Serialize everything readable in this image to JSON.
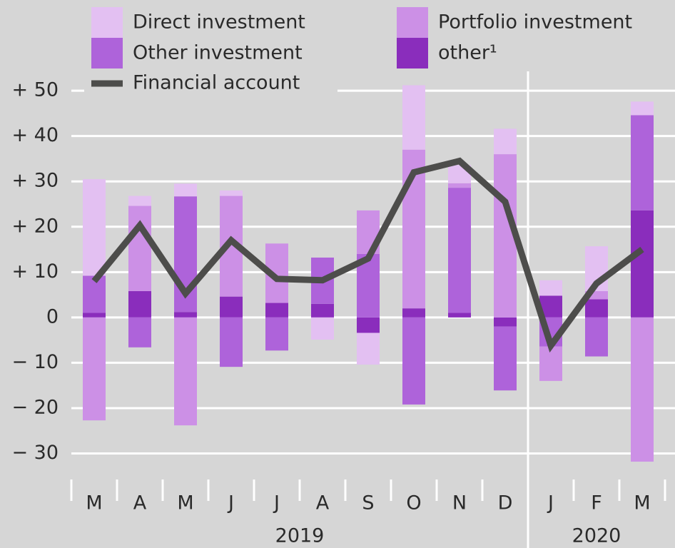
{
  "chart_data": {
    "type": "bar",
    "stacked": true,
    "groups": [
      {
        "label": "2019",
        "categories": [
          "M",
          "A",
          "M",
          "J",
          "J",
          "A",
          "S",
          "O",
          "N",
          "D"
        ]
      },
      {
        "label": "2020",
        "categories": [
          "J",
          "F",
          "M"
        ]
      }
    ],
    "series": [
      {
        "name": "Direct investment",
        "color": "#e3c0f2",
        "values": [
          21.3,
          2.2,
          2.8,
          1.2,
          0,
          -4.9,
          -7,
          14.2,
          4,
          5.6,
          3.4,
          9.9,
          3
        ]
      },
      {
        "name": "Portfolio investment",
        "color": "#cc90e6",
        "values": [
          -22.7,
          18.8,
          -23.8,
          22.2,
          13.1,
          0,
          9.6,
          35,
          1,
          36,
          -7.6,
          1.8,
          -31.8
        ]
      },
      {
        "name": "Other investment",
        "color": "#ae63da",
        "values": [
          8.2,
          -6.6,
          25.5,
          -10.9,
          -7.3,
          10.2,
          14,
          -19.2,
          27.6,
          -14.1,
          -6.4,
          -8.6,
          21
        ]
      },
      {
        "name": "other¹",
        "color": "#8a2dbc",
        "values": [
          1,
          5.8,
          1.2,
          4.6,
          3.2,
          3,
          -3.4,
          2,
          1,
          -2,
          4.8,
          4,
          23.6
        ]
      },
      {
        "name": "Financial account",
        "type": "line",
        "color": "#4d4d4b",
        "values": [
          8,
          20.3,
          5.3,
          17,
          8.5,
          8.2,
          13,
          32,
          34.5,
          25.5,
          -6.2,
          7.5,
          15
        ]
      }
    ],
    "ylim": [
      -33,
      70
    ],
    "yticks": [
      {
        "value": -30,
        "label": "− 30"
      },
      {
        "value": -20,
        "label": "− 20"
      },
      {
        "value": -10,
        "label": "− 10"
      },
      0,
      {
        "value": 10,
        "label": "+ 10"
      },
      {
        "value": 20,
        "label": "+ 20"
      },
      {
        "value": 30,
        "label": "+ 30"
      },
      {
        "value": 40,
        "label": "+ 40"
      },
      {
        "value": 50,
        "label": "+ 50"
      }
    ],
    "grid": true
  }
}
